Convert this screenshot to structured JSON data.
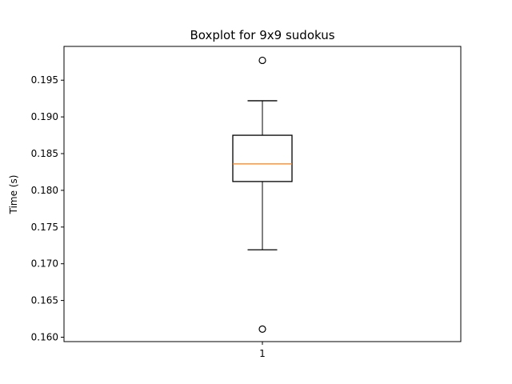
{
  "chart_data": {
    "type": "boxplot",
    "title": "Boxplot for 9x9 sudokus",
    "xlabel": "",
    "ylabel": "Time (s)",
    "categories": [
      "1"
    ],
    "boxes": [
      {
        "category": "1",
        "whisker_low": 0.1719,
        "q1": 0.1812,
        "median": 0.1836,
        "q3": 0.1875,
        "whisker_high": 0.1922,
        "outliers": [
          0.1977,
          0.1611
        ]
      }
    ],
    "ylim": [
      0.1594,
      0.1996
    ],
    "yticks": [
      0.16,
      0.165,
      0.17,
      0.175,
      0.18,
      0.185,
      0.19,
      0.195
    ],
    "ytick_labels": [
      "0.160",
      "0.165",
      "0.170",
      "0.175",
      "0.180",
      "0.185",
      "0.190",
      "0.195"
    ],
    "grid": false,
    "colors": {
      "box": "#000000",
      "median": "#ff7f0e",
      "outlier": "#000000"
    }
  }
}
